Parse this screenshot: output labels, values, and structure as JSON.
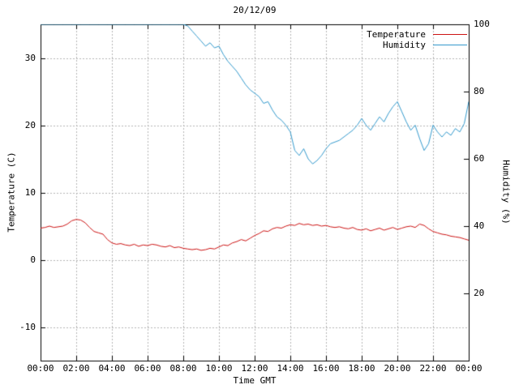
{
  "chart": {
    "title": "20/12/09",
    "xlabel": "Time GMT",
    "ylabel_left": "Temperature (C)",
    "ylabel_right": "Humidity (%)"
  },
  "chart_data": {
    "type": "line",
    "title": "20/12/09",
    "xlabel": "Time GMT",
    "grid": true,
    "legend_position": "top-right",
    "x_unit": "hours",
    "x_range": [
      0,
      24
    ],
    "x_tick_hours": [
      0,
      2,
      4,
      6,
      8,
      10,
      12,
      14,
      16,
      18,
      20,
      22,
      24
    ],
    "x_tick_labels": [
      "00:00",
      "02:00",
      "04:00",
      "06:00",
      "08:00",
      "10:00",
      "12:00",
      "14:00",
      "16:00",
      "18:00",
      "20:00",
      "22:00",
      "00:00"
    ],
    "left_axis": {
      "label": "Temperature (C)",
      "range": [
        -15,
        35
      ],
      "ticks": [
        -10,
        0,
        10,
        20,
        30
      ],
      "tick_labels": [
        "-10",
        "0",
        "10",
        "20",
        "30"
      ]
    },
    "right_axis": {
      "label": "Humidity (%)",
      "range": [
        0,
        100
      ],
      "ticks": [
        20,
        40,
        60,
        80,
        100
      ],
      "tick_labels": [
        "20",
        "40",
        "60",
        "80",
        "100"
      ]
    },
    "series": [
      {
        "name": "Temperature",
        "axis": "left",
        "color": "#cc1414",
        "step_minutes": 15,
        "values": [
          4.7,
          4.8,
          5.0,
          4.8,
          4.9,
          5.0,
          5.3,
          5.8,
          6.0,
          5.9,
          5.5,
          4.8,
          4.2,
          4.0,
          3.8,
          3.0,
          2.5,
          2.3,
          2.4,
          2.2,
          2.1,
          2.3,
          2.0,
          2.2,
          2.1,
          2.3,
          2.2,
          2.0,
          1.9,
          2.1,
          1.8,
          1.9,
          1.7,
          1.6,
          1.5,
          1.6,
          1.4,
          1.5,
          1.7,
          1.6,
          1.9,
          2.2,
          2.1,
          2.5,
          2.7,
          3.0,
          2.8,
          3.2,
          3.6,
          3.9,
          4.3,
          4.2,
          4.6,
          4.8,
          4.7,
          5.0,
          5.2,
          5.1,
          5.4,
          5.2,
          5.3,
          5.1,
          5.2,
          5.0,
          5.1,
          4.9,
          4.8,
          4.9,
          4.7,
          4.6,
          4.8,
          4.5,
          4.4,
          4.6,
          4.3,
          4.5,
          4.7,
          4.4,
          4.6,
          4.8,
          4.5,
          4.7,
          4.9,
          5.0,
          4.8,
          5.3,
          5.1,
          4.6,
          4.2,
          4.0,
          3.8,
          3.7,
          3.5,
          3.4,
          3.3,
          3.1,
          2.9
        ]
      },
      {
        "name": "Humidity",
        "axis": "right",
        "color": "#3399cc",
        "step_minutes": 15,
        "values": [
          100,
          100,
          100,
          100,
          100,
          100,
          100,
          100,
          100,
          100,
          100,
          100,
          100,
          100,
          100,
          100,
          100,
          100,
          100,
          100,
          100,
          100,
          100,
          100,
          100,
          100,
          100,
          100,
          100,
          100,
          100,
          100,
          100,
          99.5,
          98,
          96.5,
          95,
          93.5,
          94.5,
          93,
          93.5,
          91,
          89,
          87.5,
          86,
          84,
          82,
          80.5,
          79.5,
          78.5,
          76.5,
          77,
          74.5,
          72.5,
          71.5,
          70,
          68,
          62.5,
          61,
          63,
          60,
          58.5,
          59.5,
          61,
          63,
          64.5,
          65,
          65.5,
          66.5,
          67.5,
          68.5,
          70,
          72,
          70,
          68.5,
          70.5,
          72.5,
          71,
          73.5,
          75.5,
          77,
          74,
          71,
          68.5,
          70,
          66,
          62.5,
          64.5,
          70,
          68,
          66.5,
          68,
          67,
          69,
          68,
          70.5,
          77
        ]
      }
    ]
  },
  "legend": {
    "items": [
      {
        "label": "Temperature",
        "color": "#cc1414"
      },
      {
        "label": "Humidity",
        "color": "#3399cc"
      }
    ]
  }
}
